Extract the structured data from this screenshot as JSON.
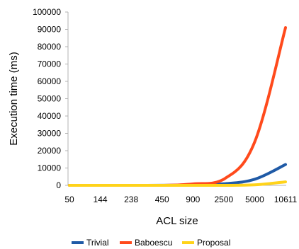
{
  "chart_data": {
    "type": "line",
    "title": "",
    "xlabel": "ACL size",
    "ylabel": "Execution time (ms)",
    "categories": [
      "50",
      "144",
      "238",
      "450",
      "900",
      "2500",
      "5000",
      "10611"
    ],
    "ylim": [
      0,
      100000
    ],
    "yticks": [
      0,
      10000,
      20000,
      30000,
      40000,
      50000,
      60000,
      70000,
      80000,
      90000,
      100000
    ],
    "grid": false,
    "legend_position": "bottom",
    "series": [
      {
        "name": "Trivial",
        "color": "#1f5aa6",
        "values": [
          0,
          0,
          0,
          50,
          300,
          900,
          3500,
          12000
        ]
      },
      {
        "name": "Baboescu",
        "color": "#ff4a1c",
        "values": [
          0,
          0,
          0,
          0,
          800,
          3500,
          25000,
          91000
        ]
      },
      {
        "name": "Proposal",
        "color": "#ffd31a",
        "values": [
          0,
          0,
          0,
          0,
          0,
          0,
          300,
          2000
        ]
      }
    ]
  }
}
